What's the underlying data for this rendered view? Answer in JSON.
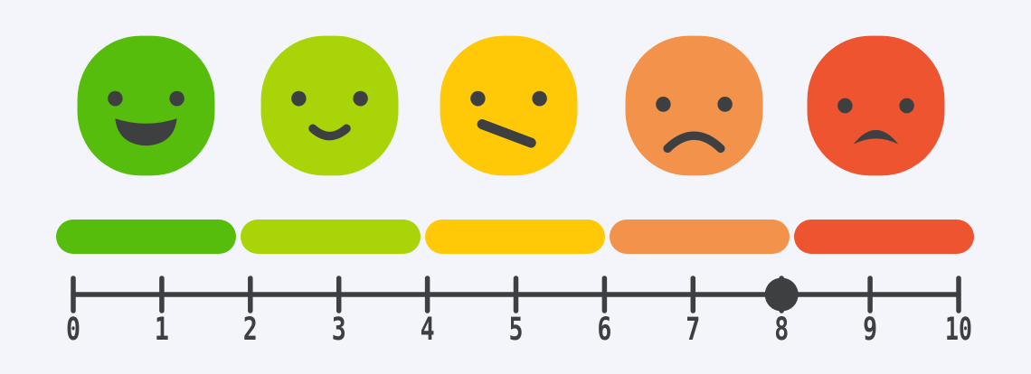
{
  "app": {
    "background_color": "#f4f5fa",
    "ink_color": "#3e3f41"
  },
  "scale": {
    "kind": "emoji-rating-scale",
    "faces": [
      {
        "mood": "very-happy",
        "icon": "very-happy-face-icon",
        "color": "#56bd0c"
      },
      {
        "mood": "happy",
        "icon": "happy-face-icon",
        "color": "#a8d408"
      },
      {
        "mood": "neutral",
        "icon": "neutral-face-icon",
        "color": "#ffc908"
      },
      {
        "mood": "unhappy",
        "icon": "unhappy-face-icon",
        "color": "#f2924b"
      },
      {
        "mood": "angry",
        "icon": "angry-face-icon",
        "color": "#ee5430"
      }
    ],
    "bar_segments": [
      "#56bd0c",
      "#a8d408",
      "#ffc908",
      "#f2924b",
      "#ee5430"
    ],
    "axis": {
      "min": 0,
      "max": 10,
      "tick_labels": [
        "0",
        "1",
        "2",
        "3",
        "4",
        "5",
        "6",
        "7",
        "8",
        "9",
        "10"
      ],
      "selected_value": 8
    }
  }
}
